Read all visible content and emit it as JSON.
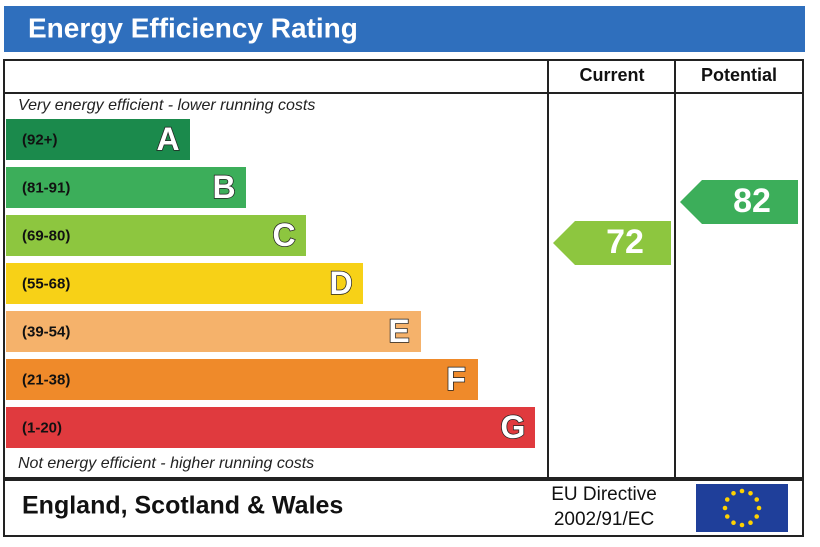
{
  "header": {
    "title": "Energy Efficiency Rating"
  },
  "columns": [
    "Current",
    "Potential"
  ],
  "top_note": "Very energy efficient - lower running costs",
  "bands": [
    {
      "range": "(92+)",
      "letter": "A"
    },
    {
      "range": "(81-91)",
      "letter": "B"
    },
    {
      "range": "(69-80)",
      "letter": "C"
    },
    {
      "range": "(55-68)",
      "letter": "D"
    },
    {
      "range": "(39-54)",
      "letter": "E"
    },
    {
      "range": "(21-38)",
      "letter": "F"
    },
    {
      "range": "(1-20)",
      "letter": "G"
    }
  ],
  "bottom_note": "Not energy efficient - higher running costs",
  "current": 72,
  "potential": 82,
  "footer": {
    "region": "England, Scotland & Wales",
    "directive": [
      "EU Directive",
      "2002/91/EC"
    ]
  }
}
